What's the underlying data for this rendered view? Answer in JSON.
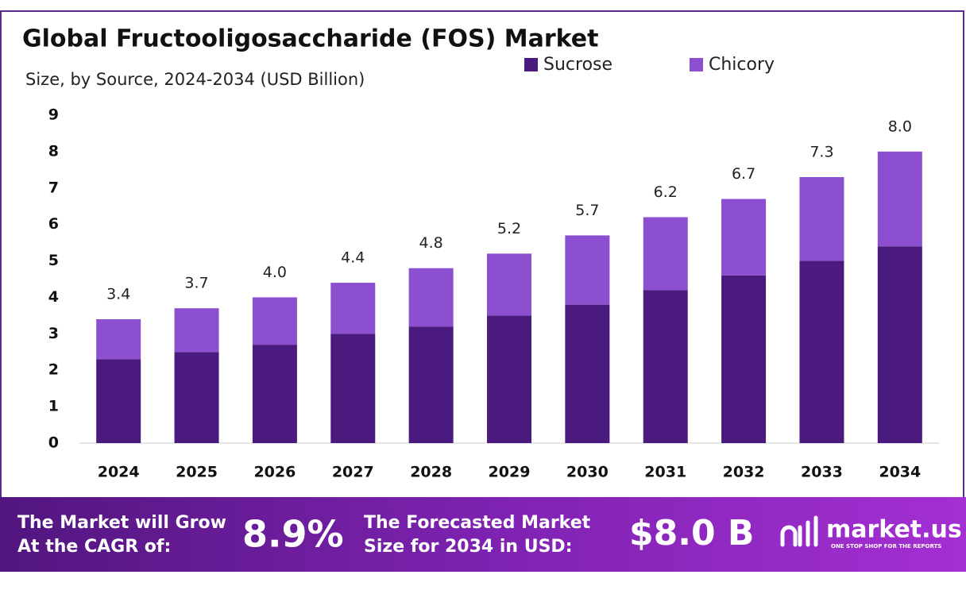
{
  "chart_data": {
    "type": "stacked-bar",
    "title": "Global Fructooligosaccharide (FOS) Market",
    "subtitle": "Size, by Source, 2024-2034 (USD Billion)",
    "categories": [
      "2024",
      "2025",
      "2026",
      "2027",
      "2028",
      "2029",
      "2030",
      "2031",
      "2032",
      "2033",
      "2034"
    ],
    "series": [
      {
        "name": "Sucrose",
        "color": "#4b1a7f",
        "values": [
          2.3,
          2.5,
          2.7,
          3.0,
          3.2,
          3.5,
          3.8,
          4.2,
          4.6,
          5.0,
          5.4
        ]
      },
      {
        "name": "Chicory",
        "color": "#8c4fcf",
        "values": [
          1.1,
          1.2,
          1.3,
          1.4,
          1.6,
          1.7,
          1.9,
          2.0,
          2.1,
          2.3,
          2.6
        ]
      }
    ],
    "totals": [
      3.4,
      3.7,
      4.0,
      4.4,
      4.8,
      5.2,
      5.7,
      6.2,
      6.7,
      7.3,
      8.0
    ],
    "total_labels": [
      "3.4",
      "3.7",
      "4.0",
      "4.4",
      "4.8",
      "5.2",
      "5.7",
      "6.2",
      "6.7",
      "7.3",
      "8.0"
    ],
    "ylim": [
      0,
      9
    ],
    "yticks": [
      0,
      1,
      2,
      3,
      4,
      5,
      6,
      7,
      8,
      9
    ],
    "grid": false
  },
  "footer": {
    "cagr_text": [
      "The Market will Grow",
      "At the CAGR of:"
    ],
    "cagr": "8.9%",
    "forecast_text": [
      "The Forecasted Market",
      "Size for 2034 in USD:"
    ],
    "forecast": "$8.0 B",
    "brand": "market.us",
    "tagline": "ONE STOP SHOP FOR THE REPORTS"
  }
}
